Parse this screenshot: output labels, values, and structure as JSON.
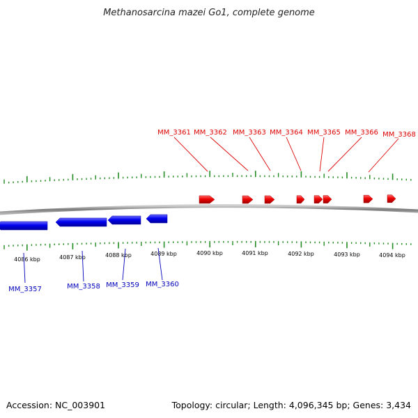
{
  "title": "Methanosarcina mazei Go1, complete genome",
  "footer": {
    "accession": "Accession: NC_003901",
    "summary": "Topology: circular; Length: 4,096,345 bp; Genes: 3,434"
  },
  "colors": {
    "forward_gene": "#ee0000",
    "reverse_gene": "#0000ee",
    "forward_label": "#dd0000",
    "reverse_label": "#0000bb",
    "tick": "#228b22",
    "backbone": "#8a8a8a"
  },
  "scale_labels": [
    "4086 kbp",
    "4087 kbp",
    "4088 kbp",
    "4089 kbp",
    "4090 kbp",
    "4091 kbp",
    "4092 kbp",
    "4093 kbp",
    "4094 kbp"
  ],
  "forward_genes": [
    {
      "label": "MM_3361"
    },
    {
      "label": "MM_3362"
    },
    {
      "label": "MM_3363"
    },
    {
      "label": "MM_3364"
    },
    {
      "label": "MM_3365"
    },
    {
      "label": "MM_3366"
    },
    {
      "label": "MM_3368"
    }
  ],
  "reverse_genes": [
    {
      "label": "MM_3357"
    },
    {
      "label": "MM_3358"
    },
    {
      "label": "MM_3359"
    },
    {
      "label": "MM_3360"
    }
  ]
}
